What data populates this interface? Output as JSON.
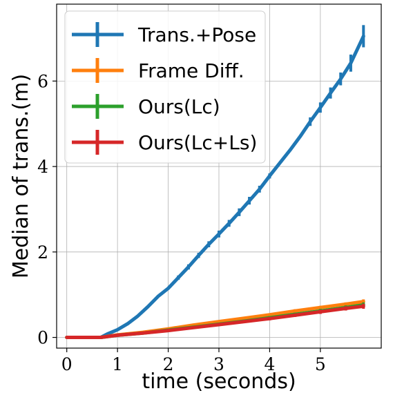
{
  "chart_data": {
    "type": "line",
    "title": "",
    "xlabel": "time (seconds)",
    "ylabel": "Median of trans.(m)",
    "xlim": [
      -0.2,
      6.2
    ],
    "ylim": [
      -0.25,
      7.8
    ],
    "xticks": [
      0,
      1,
      2,
      3,
      4,
      5
    ],
    "yticks": [
      0,
      2,
      4,
      6
    ],
    "grid": true,
    "legend_position": "top-left",
    "series": [
      {
        "name": "Trans.+Pose",
        "color": "#1f77b4",
        "x": [
          0,
          0.67,
          0.8,
          1.0,
          1.2,
          1.4,
          1.6,
          1.8,
          2.0,
          2.2,
          2.4,
          2.6,
          2.8,
          3.0,
          3.2,
          3.4,
          3.6,
          3.8,
          4.0,
          4.2,
          4.4,
          4.6,
          4.8,
          5.0,
          5.2,
          5.4,
          5.6,
          5.85
        ],
        "y": [
          0,
          0,
          0.08,
          0.18,
          0.32,
          0.5,
          0.72,
          0.96,
          1.15,
          1.4,
          1.65,
          1.92,
          2.18,
          2.42,
          2.67,
          2.93,
          3.2,
          3.47,
          3.78,
          4.08,
          4.38,
          4.7,
          5.05,
          5.38,
          5.72,
          6.05,
          6.42,
          7.05
        ],
        "errors": [
          0,
          0,
          0,
          0,
          0,
          0,
          0,
          0,
          0,
          0.05,
          0.06,
          0.06,
          0.07,
          0.08,
          0.08,
          0.09,
          0.09,
          0.08,
          0.06,
          0,
          0,
          0,
          0.1,
          0.12,
          0.13,
          0.15,
          0.2,
          0.26
        ]
      },
      {
        "name": "Frame Diff.",
        "color": "#ff7f0e",
        "x": [
          0,
          0.67,
          1.0,
          1.5,
          2.0,
          2.5,
          3.0,
          3.5,
          4.0,
          4.5,
          5.0,
          5.5,
          5.85
        ],
        "y": [
          0,
          0,
          0.06,
          0.12,
          0.2,
          0.29,
          0.37,
          0.45,
          0.53,
          0.62,
          0.7,
          0.78,
          0.84
        ],
        "errors": [
          0,
          0,
          0,
          0,
          0.02,
          0.02,
          0.03,
          0.03,
          0.03,
          0.04,
          0.04,
          0.04,
          0.05
        ]
      },
      {
        "name": "Ours(Lc)",
        "color": "#2ca02c",
        "x": [
          0,
          0.67,
          1.0,
          1.5,
          2.0,
          2.5,
          3.0,
          3.5,
          4.0,
          4.5,
          5.0,
          5.5,
          5.85
        ],
        "y": [
          0,
          0,
          0.05,
          0.1,
          0.17,
          0.24,
          0.31,
          0.38,
          0.46,
          0.54,
          0.62,
          0.7,
          0.76
        ],
        "errors": [
          0,
          0,
          0,
          0,
          0.02,
          0.02,
          0.03,
          0.03,
          0.04,
          0.04,
          0.05,
          0.05,
          0.06
        ]
      },
      {
        "name": "Ours(Lc+Ls)",
        "color": "#d62728",
        "x": [
          0,
          0.67,
          1.0,
          1.5,
          2.0,
          2.5,
          3.0,
          3.5,
          4.0,
          4.5,
          5.0,
          5.5,
          5.85
        ],
        "y": [
          0,
          0,
          0.05,
          0.1,
          0.16,
          0.23,
          0.3,
          0.37,
          0.44,
          0.52,
          0.6,
          0.68,
          0.73
        ],
        "errors": [
          0,
          0,
          0,
          0,
          0.02,
          0.02,
          0.03,
          0.03,
          0.04,
          0.04,
          0.05,
          0.05,
          0.06
        ]
      }
    ]
  }
}
